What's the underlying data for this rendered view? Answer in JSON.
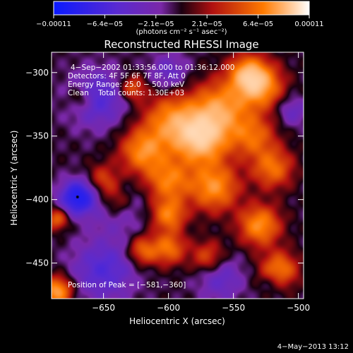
{
  "chart_data": {
    "type": "heatmap",
    "title": "Reconstructed RHESSI Image",
    "xlabel": "Heliocentric X (arcsec)",
    "ylabel": "Heliocentric Y (arcsec)",
    "xlim": [
      -690,
      -496
    ],
    "ylim": [
      -478,
      -284
    ],
    "x_ticks": [
      -650,
      -600,
      -550,
      -500
    ],
    "x_tick_labels": [
      "−650",
      "−600",
      "−550",
      "−500"
    ],
    "y_ticks": [
      -300,
      -350,
      -400,
      -450
    ],
    "y_tick_labels": [
      "−300",
      "−350",
      "−400",
      "−450"
    ],
    "colorbar": {
      "min": -0.00011,
      "max": 0.00011,
      "tick_labels": [
        "−0.00011",
        "−6.4e−05",
        "−2.1e−05",
        "2.1e−05",
        "6.4e−05",
        "0.00011"
      ],
      "unit_label": "(photons cm⁻² s⁻¹ asec⁻²)",
      "colors": [
        "#0a1aff",
        "#5a2ad0",
        "#7a28a8",
        "#1a0010",
        "#b01010",
        "#ff7a00",
        "#ffffff"
      ]
    },
    "annotations": {
      "time_range": "4−Sep−2002 01:33:56.000 to 01:36:12.000",
      "detectors": "Detectors: 4F 5F 6F 7F 8F, Att 0",
      "energy_range": "Energy Range: 25.0 − 50.0 keV",
      "clean_counts": "Clean    Total counts: 1.30E+03",
      "peak_position": "Position of Peak = [−581,−360]"
    },
    "peak": [
      -581,
      -360
    ],
    "blobs": [
      {
        "x": -575,
        "y": -352,
        "amp": 1.0,
        "s": 14
      },
      {
        "x": -598,
        "y": -338,
        "amp": 0.7,
        "s": 15
      },
      {
        "x": -560,
        "y": -328,
        "amp": 0.75,
        "s": 15
      },
      {
        "x": -530,
        "y": -310,
        "amp": 0.85,
        "s": 12
      },
      {
        "x": -535,
        "y": -350,
        "amp": 0.55,
        "s": 12
      },
      {
        "x": -620,
        "y": -362,
        "amp": 0.7,
        "s": 12
      },
      {
        "x": -600,
        "y": -385,
        "amp": 0.65,
        "s": 12
      },
      {
        "x": -565,
        "y": -390,
        "amp": 0.75,
        "s": 13
      },
      {
        "x": -520,
        "y": -375,
        "amp": 0.6,
        "s": 11
      },
      {
        "x": -600,
        "y": -412,
        "amp": 0.65,
        "s": 9
      },
      {
        "x": -530,
        "y": -420,
        "amp": 0.75,
        "s": 11
      },
      {
        "x": -640,
        "y": -402,
        "amp": 0.45,
        "s": 9
      },
      {
        "x": -650,
        "y": -385,
        "amp": 0.45,
        "s": 9
      },
      {
        "x": -540,
        "y": -300,
        "amp": 0.65,
        "s": 10
      },
      {
        "x": -515,
        "y": -455,
        "amp": 0.65,
        "s": 10
      },
      {
        "x": -600,
        "y": -438,
        "amp": 0.6,
        "s": 9
      },
      {
        "x": -620,
        "y": -440,
        "amp": 0.55,
        "s": 8
      },
      {
        "x": -570,
        "y": -445,
        "amp": 0.45,
        "s": 9
      },
      {
        "x": -686,
        "y": -472,
        "amp": 0.85,
        "s": 8
      },
      {
        "x": -686,
        "y": -415,
        "amp": 0.55,
        "s": 6
      },
      {
        "x": -628,
        "y": -312,
        "amp": 0.5,
        "s": 7
      },
      {
        "x": -668,
        "y": -320,
        "amp": 0.35,
        "s": 7
      },
      {
        "x": -640,
        "y": -405,
        "amp": -0.35,
        "s": 14
      },
      {
        "x": -670,
        "y": -398,
        "amp": -1.0,
        "s": 9
      },
      {
        "x": -655,
        "y": -320,
        "amp": -0.5,
        "s": 15
      },
      {
        "x": -650,
        "y": -455,
        "amp": -0.5,
        "s": 16
      },
      {
        "x": -560,
        "y": -462,
        "amp": -0.35,
        "s": 12
      },
      {
        "x": -600,
        "y": -300,
        "amp": -0.35,
        "s": 10
      },
      {
        "x": -505,
        "y": -330,
        "amp": -0.3,
        "s": 8
      },
      {
        "x": -520,
        "y": -465,
        "amp": -0.2,
        "s": 6
      }
    ]
  },
  "footer": {
    "timestamp": "4−May−2013 13:12"
  }
}
